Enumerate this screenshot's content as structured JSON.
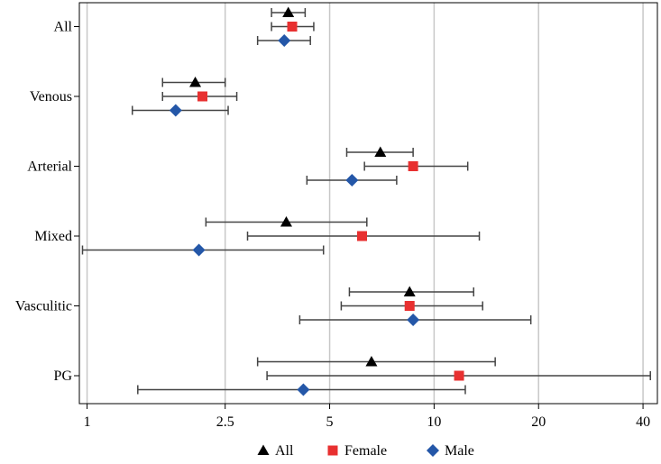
{
  "chart_data": {
    "type": "forest",
    "x_scale": "log",
    "xlim": [
      0.95,
      44
    ],
    "x_ticks": [
      1,
      2.5,
      5,
      10,
      20,
      40
    ],
    "x_tick_labels": [
      "1",
      "2.5",
      "5",
      "10",
      "20",
      "40"
    ],
    "grid": "vertical",
    "categories": [
      "All",
      "Venous",
      "Arterial",
      "Mixed",
      "Vasculitic",
      "PG"
    ],
    "series": [
      {
        "name": "All",
        "marker": "triangle",
        "color": "#000000",
        "points": [
          {
            "category": "All",
            "estimate": 3.8,
            "lower": 3.4,
            "upper": 4.25
          },
          {
            "category": "Venous",
            "estimate": 2.05,
            "lower": 1.65,
            "upper": 2.5
          },
          {
            "category": "Arterial",
            "estimate": 7.0,
            "lower": 5.6,
            "upper": 8.7
          },
          {
            "category": "Mixed",
            "estimate": 3.75,
            "lower": 2.2,
            "upper": 6.4
          },
          {
            "category": "Vasculitic",
            "estimate": 8.5,
            "lower": 5.7,
            "upper": 13.0
          },
          {
            "category": "PG",
            "estimate": 6.6,
            "lower": 3.1,
            "upper": 15.0
          }
        ]
      },
      {
        "name": "Female",
        "marker": "square",
        "color": "#e83030",
        "points": [
          {
            "category": "All",
            "estimate": 3.9,
            "lower": 3.4,
            "upper": 4.5
          },
          {
            "category": "Venous",
            "estimate": 2.15,
            "lower": 1.65,
            "upper": 2.7
          },
          {
            "category": "Arterial",
            "estimate": 8.7,
            "lower": 6.3,
            "upper": 12.5
          },
          {
            "category": "Mixed",
            "estimate": 6.2,
            "lower": 2.9,
            "upper": 13.5
          },
          {
            "category": "Vasculitic",
            "estimate": 8.5,
            "lower": 5.4,
            "upper": 13.8
          },
          {
            "category": "PG",
            "estimate": 11.8,
            "lower": 3.3,
            "upper": 42.0
          }
        ]
      },
      {
        "name": "Male",
        "marker": "diamond",
        "color": "#2457a8",
        "points": [
          {
            "category": "All",
            "estimate": 3.7,
            "lower": 3.1,
            "upper": 4.4
          },
          {
            "category": "Venous",
            "estimate": 1.8,
            "lower": 1.35,
            "upper": 2.55
          },
          {
            "category": "Arterial",
            "estimate": 5.8,
            "lower": 4.3,
            "upper": 7.8
          },
          {
            "category": "Mixed",
            "estimate": 2.1,
            "lower": 0.97,
            "upper": 4.8
          },
          {
            "category": "Vasculitic",
            "estimate": 8.7,
            "lower": 4.1,
            "upper": 19.0
          },
          {
            "category": "PG",
            "estimate": 4.2,
            "lower": 1.4,
            "upper": 12.3
          }
        ]
      }
    ],
    "legend": {
      "placement": "bottom",
      "entries": [
        "All",
        "Female",
        "Male"
      ]
    }
  }
}
